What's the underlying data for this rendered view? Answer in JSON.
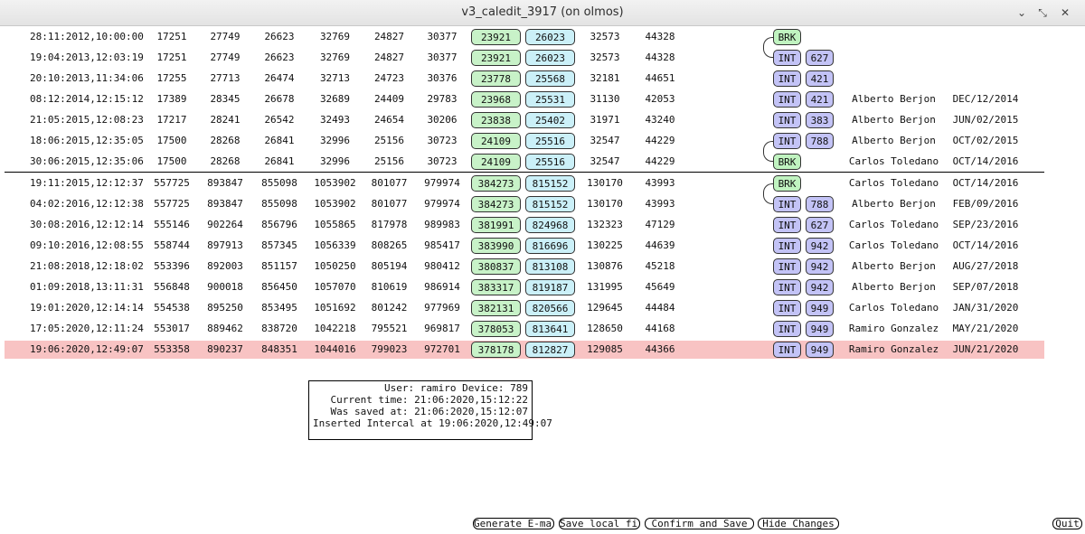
{
  "window": {
    "title": "v3_caledit_3917 (on olmos)",
    "min_glyph": "⌄",
    "max_glyph": "⤡",
    "close_glyph": "✕"
  },
  "rows": [
    {
      "date": "28:11:2012,10:00:00",
      "v1": "17251",
      "v2": "27749",
      "v3": "26623",
      "v4": "32769",
      "v5": "24827",
      "v6": "30377",
      "g": "23921",
      "b": "26023",
      "v7": "32573",
      "v8": "44328",
      "tag": "BRK",
      "tagnum": "",
      "user": "",
      "udate": ""
    },
    {
      "date": "19:04:2013,12:03:19",
      "v1": "17251",
      "v2": "27749",
      "v3": "26623",
      "v4": "32769",
      "v5": "24827",
      "v6": "30377",
      "g": "23921",
      "b": "26023",
      "v7": "32573",
      "v8": "44328",
      "tag": "INT",
      "tagnum": "627",
      "user": "",
      "udate": ""
    },
    {
      "date": "20:10:2013,11:34:06",
      "v1": "17255",
      "v2": "27713",
      "v3": "26474",
      "v4": "32713",
      "v5": "24723",
      "v6": "30376",
      "g": "23778",
      "b": "25568",
      "v7": "32181",
      "v8": "44651",
      "tag": "INT",
      "tagnum": "421",
      "user": "",
      "udate": ""
    },
    {
      "date": "08:12:2014,12:15:12",
      "v1": "17389",
      "v2": "28345",
      "v3": "26678",
      "v4": "32689",
      "v5": "24409",
      "v6": "29783",
      "g": "23968",
      "b": "25531",
      "v7": "31130",
      "v8": "42053",
      "tag": "INT",
      "tagnum": "421",
      "user": "Alberto Berjon",
      "udate": "DEC/12/2014"
    },
    {
      "date": "21:05:2015,12:08:23",
      "v1": "17217",
      "v2": "28241",
      "v3": "26542",
      "v4": "32493",
      "v5": "24654",
      "v6": "30206",
      "g": "23838",
      "b": "25402",
      "v7": "31971",
      "v8": "43240",
      "tag": "INT",
      "tagnum": "383",
      "user": "Alberto Berjon",
      "udate": "JUN/02/2015"
    },
    {
      "date": "18:06:2015,12:35:05",
      "v1": "17500",
      "v2": "28268",
      "v3": "26841",
      "v4": "32996",
      "v5": "25156",
      "v6": "30723",
      "g": "24109",
      "b": "25516",
      "v7": "32547",
      "v8": "44229",
      "tag": "INT",
      "tagnum": "788",
      "user": "Alberto Berjon",
      "udate": "OCT/02/2015"
    },
    {
      "date": "30:06:2015,12:35:06",
      "v1": "17500",
      "v2": "28268",
      "v3": "26841",
      "v4": "32996",
      "v5": "25156",
      "v6": "30723",
      "g": "24109",
      "b": "25516",
      "v7": "32547",
      "v8": "44229",
      "tag": "BRK",
      "tagnum": "",
      "user": "Carlos Toledano",
      "udate": "OCT/14/2016"
    },
    {
      "date": "19:11:2015,12:12:37",
      "v1": "557725",
      "v2": "893847",
      "v3": "855098",
      "v4": "1053902",
      "v5": "801077",
      "v6": "979974",
      "g": "384273",
      "b": "815152",
      "v7": "130170",
      "v8": "43993",
      "tag": "BRK",
      "tagnum": "",
      "user": "Carlos Toledano",
      "udate": "OCT/14/2016"
    },
    {
      "date": "04:02:2016,12:12:38",
      "v1": "557725",
      "v2": "893847",
      "v3": "855098",
      "v4": "1053902",
      "v5": "801077",
      "v6": "979974",
      "g": "384273",
      "b": "815152",
      "v7": "130170",
      "v8": "43993",
      "tag": "INT",
      "tagnum": "788",
      "user": "Alberto Berjon",
      "udate": "FEB/09/2016"
    },
    {
      "date": "30:08:2016,12:12:14",
      "v1": "555146",
      "v2": "902264",
      "v3": "856796",
      "v4": "1055865",
      "v5": "817978",
      "v6": "989983",
      "g": "381991",
      "b": "824968",
      "v7": "132323",
      "v8": "47129",
      "tag": "INT",
      "tagnum": "627",
      "user": "Carlos Toledano",
      "udate": "SEP/23/2016"
    },
    {
      "date": "09:10:2016,12:08:55",
      "v1": "558744",
      "v2": "897913",
      "v3": "857345",
      "v4": "1056339",
      "v5": "808265",
      "v6": "985417",
      "g": "383990",
      "b": "816696",
      "v7": "130225",
      "v8": "44639",
      "tag": "INT",
      "tagnum": "942",
      "user": "Carlos Toledano",
      "udate": "OCT/14/2016"
    },
    {
      "date": "21:08:2018,12:18:02",
      "v1": "553396",
      "v2": "892003",
      "v3": "851157",
      "v4": "1050250",
      "v5": "805194",
      "v6": "980412",
      "g": "380837",
      "b": "813108",
      "v7": "130876",
      "v8": "45218",
      "tag": "INT",
      "tagnum": "942",
      "user": "Alberto Berjon",
      "udate": "AUG/27/2018"
    },
    {
      "date": "01:09:2018,13:11:31",
      "v1": "556848",
      "v2": "900018",
      "v3": "856450",
      "v4": "1057070",
      "v5": "810619",
      "v6": "986914",
      "g": "383317",
      "b": "819187",
      "v7": "131995",
      "v8": "45649",
      "tag": "INT",
      "tagnum": "942",
      "user": "Alberto Berjon",
      "udate": "SEP/07/2018"
    },
    {
      "date": "19:01:2020,12:14:14",
      "v1": "554538",
      "v2": "895250",
      "v3": "853495",
      "v4": "1051692",
      "v5": "801242",
      "v6": "977969",
      "g": "382131",
      "b": "820566",
      "v7": "129645",
      "v8": "44484",
      "tag": "INT",
      "tagnum": "949",
      "user": "Carlos Toledano",
      "udate": "JAN/31/2020"
    },
    {
      "date": "17:05:2020,12:11:24",
      "v1": "553017",
      "v2": "889462",
      "v3": "838720",
      "v4": "1042218",
      "v5": "795521",
      "v6": "969817",
      "g": "378053",
      "b": "813641",
      "v7": "128650",
      "v8": "44168",
      "tag": "INT",
      "tagnum": "949",
      "user": "Ramiro Gonzalez",
      "udate": "MAY/21/2020"
    },
    {
      "date": "19:06:2020,12:49:07",
      "v1": "553358",
      "v2": "890237",
      "v3": "848351",
      "v4": "1044016",
      "v5": "799023",
      "v6": "972701",
      "g": "378178",
      "b": "812827",
      "v7": "129085",
      "v8": "44366",
      "tag": "INT",
      "tagnum": "949",
      "user": "Ramiro Gonzalez",
      "udate": "JUN/21/2020"
    }
  ],
  "selected_row": 15,
  "info": {
    "line1": "User: ramiro Device: 789",
    "line2": "Current time: 21:06:2020,15:12:22",
    "line3": "Was saved at: 21:06:2020,15:12:07",
    "line4": "Inserted Intercal at 19:06:2020,12:49:07"
  },
  "buttons": {
    "email": "Generate E-mail",
    "save_local": "Save local file",
    "confirm": "Confirm and Save",
    "hide": "Hide Changes",
    "quit": "Quit"
  },
  "colors": {
    "green_cell": "#c8f2c8",
    "blue_cell": "#cbf0f8",
    "int_tag": "#c3c3f6",
    "brk_tag": "#c0f3c0",
    "highlight": "#f8c3c3"
  }
}
